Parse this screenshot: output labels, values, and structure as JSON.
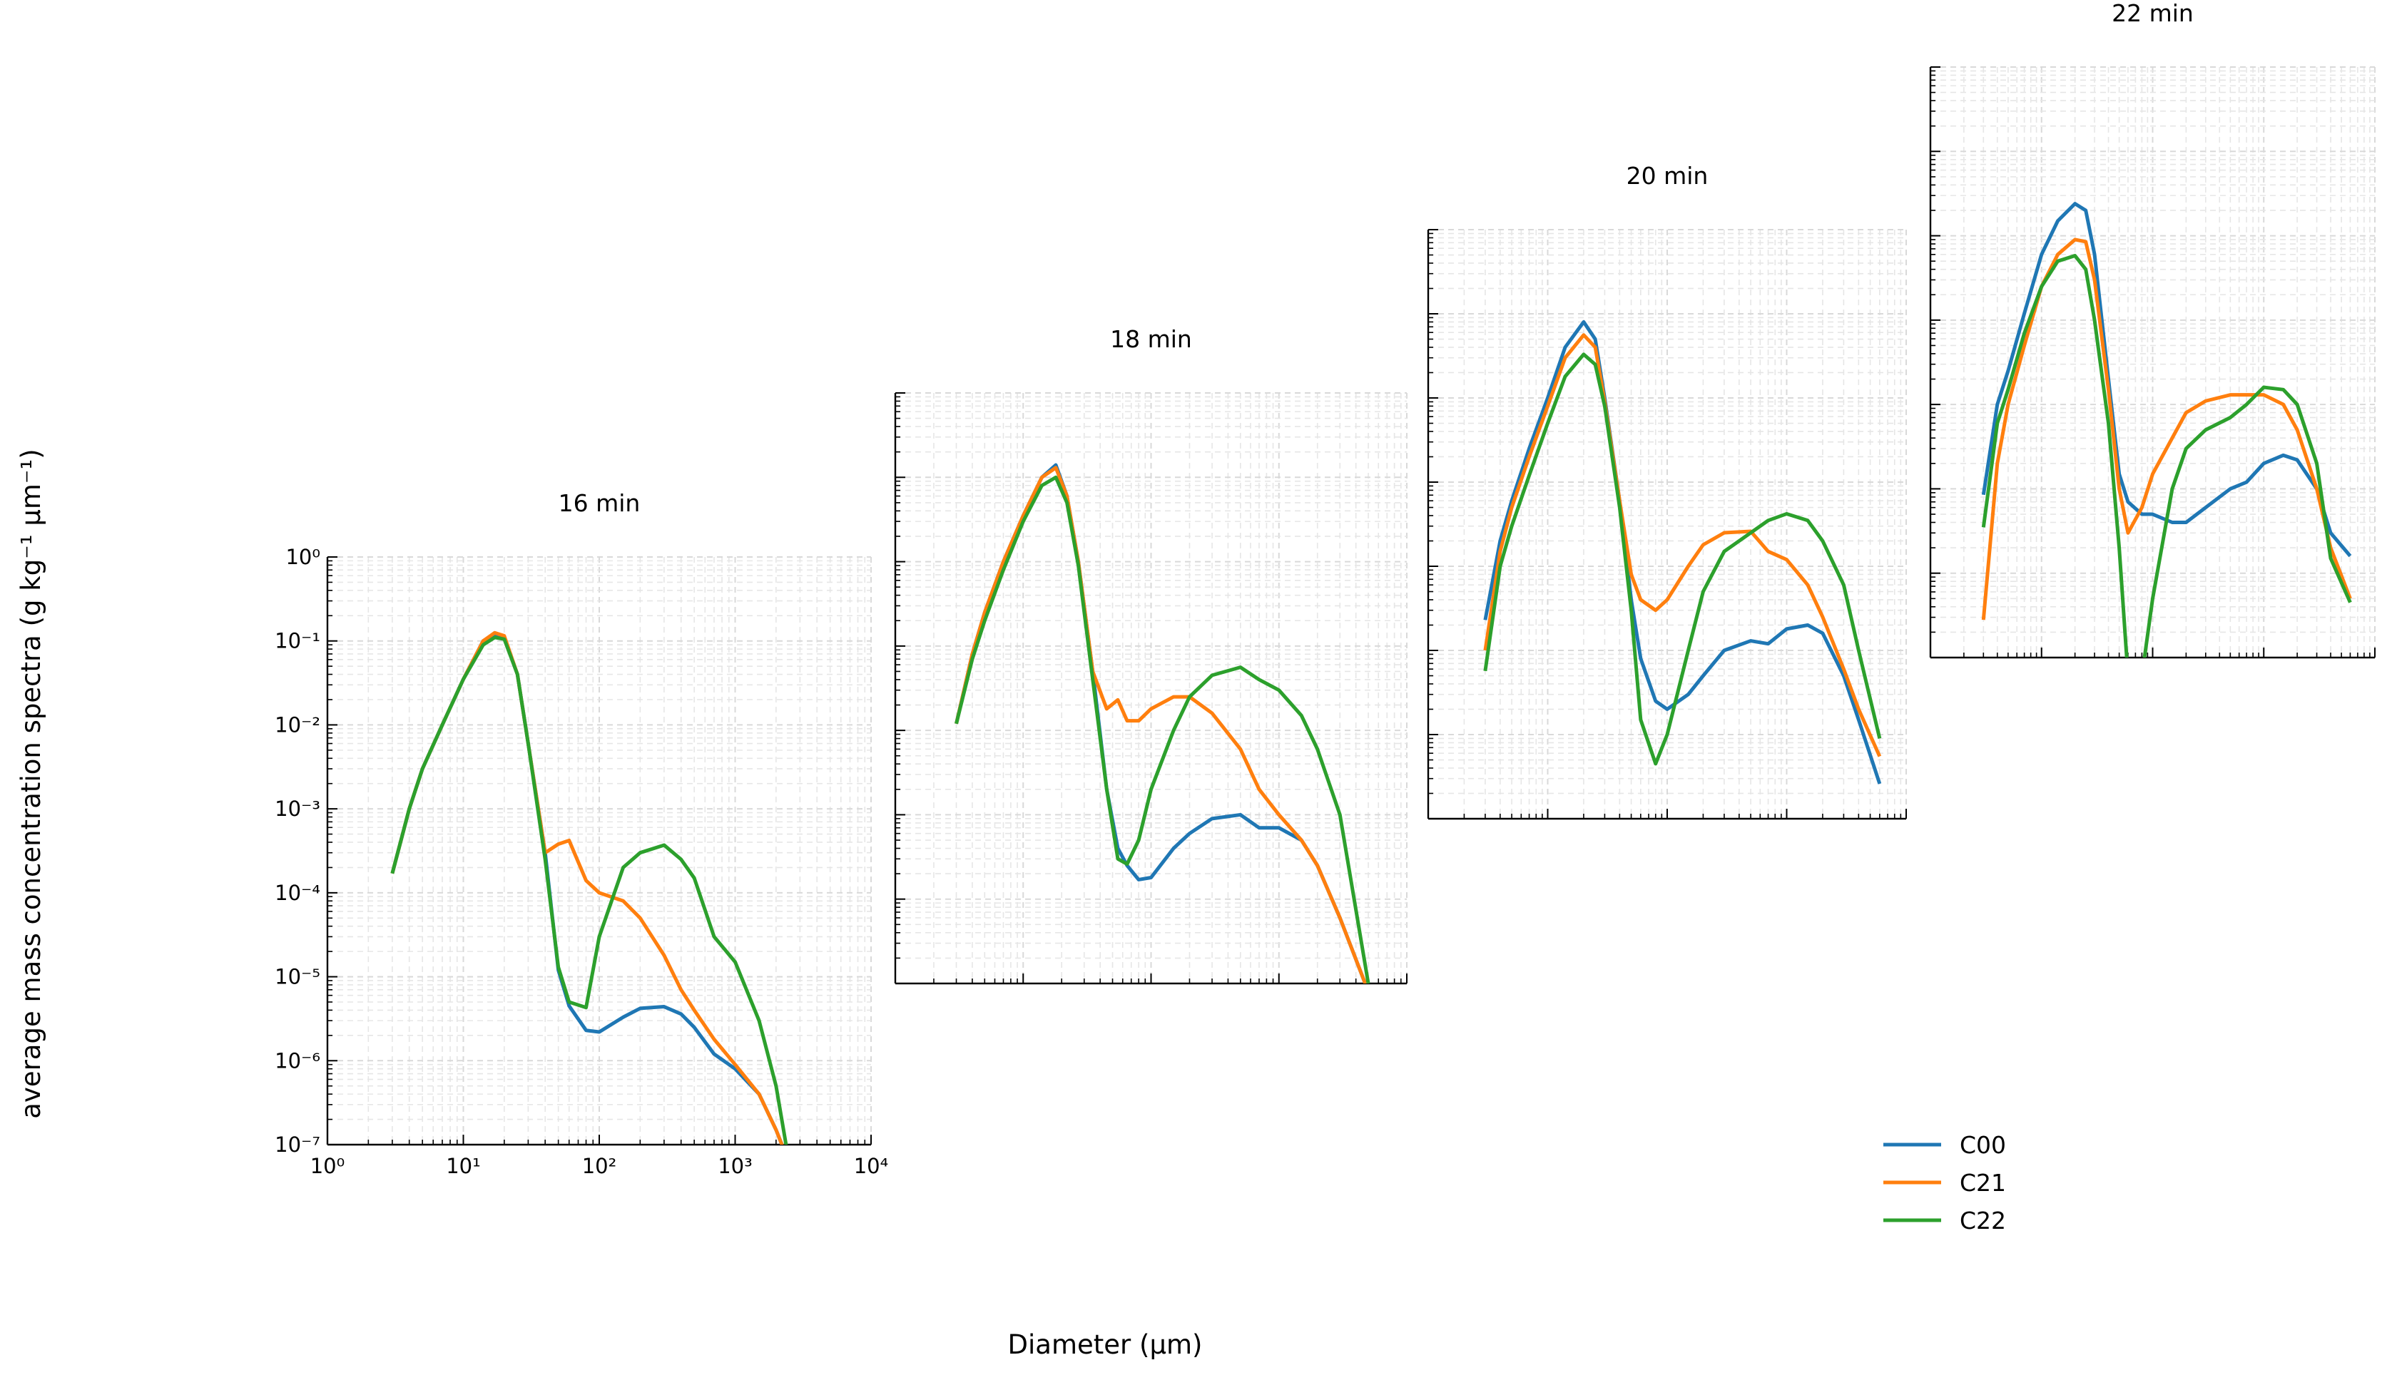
{
  "figure": {
    "xlabel": "Diameter (μm)",
    "ylabel": "average mass concentration spectra (g kg⁻¹ μm⁻¹)"
  },
  "chart_data": [
    {
      "type": "line",
      "title": "16 min",
      "log": true,
      "grid": true,
      "tick_labels": true,
      "xlim": [
        1,
        10000
      ],
      "ylim": [
        1e-07,
        1
      ],
      "xticks": [
        {
          "value": 1,
          "label": "10⁰"
        },
        {
          "value": 10,
          "label": "10¹"
        },
        {
          "value": 100,
          "label": "10²"
        },
        {
          "value": 1000,
          "label": "10³"
        },
        {
          "value": 10000,
          "label": "10⁴"
        }
      ],
      "yticks": [
        {
          "value": 1e-07,
          "label": "10⁻⁷"
        },
        {
          "value": 1e-06,
          "label": "10⁻⁶"
        },
        {
          "value": 1e-05,
          "label": "10⁻⁵"
        },
        {
          "value": 0.0001,
          "label": "10⁻⁴"
        },
        {
          "value": 0.001,
          "label": "10⁻³"
        },
        {
          "value": 0.01,
          "label": "10⁻²"
        },
        {
          "value": 0.1,
          "label": "10⁻¹"
        },
        {
          "value": 1,
          "label": "10⁰"
        }
      ],
      "x": [
        3,
        4,
        5,
        7,
        10,
        14,
        17,
        20,
        25,
        30,
        40,
        50,
        60,
        80,
        100,
        150,
        200,
        300,
        400,
        500,
        700,
        1000,
        1500,
        2000,
        2500
      ],
      "series": [
        {
          "name": "C00",
          "color": "#1f77b4",
          "values": [
            0.00017,
            0.001,
            0.003,
            0.01,
            0.035,
            0.1,
            0.12,
            0.11,
            0.04,
            0.006,
            0.0003,
            1.2e-05,
            4.5e-06,
            2.3e-06,
            2.2e-06,
            3.3e-06,
            4.2e-06,
            4.4e-06,
            3.6e-06,
            2.5e-06,
            1.2e-06,
            8e-07,
            4e-07,
            1.5e-07,
            6e-08
          ]
        },
        {
          "name": "C21",
          "color": "#ff7f0e",
          "values": [
            0.00017,
            0.001,
            0.003,
            0.01,
            0.035,
            0.1,
            0.125,
            0.115,
            0.04,
            0.006,
            0.0003,
            0.00038,
            0.00042,
            0.00014,
            0.0001,
            8e-05,
            5e-05,
            1.8e-05,
            7e-06,
            4e-06,
            1.8e-06,
            9e-07,
            4e-07,
            1.5e-07,
            6e-08
          ]
        },
        {
          "name": "C22",
          "color": "#2ca02c",
          "values": [
            0.00017,
            0.001,
            0.003,
            0.01,
            0.035,
            0.09,
            0.11,
            0.105,
            0.04,
            0.006,
            0.00025,
            1.3e-05,
            5e-06,
            4.3e-06,
            3e-05,
            0.0002,
            0.0003,
            0.00037,
            0.00025,
            0.00015,
            3e-05,
            1.5e-05,
            3e-06,
            5e-07,
            6e-08
          ]
        }
      ]
    },
    {
      "type": "line",
      "title": "18 min",
      "log": true,
      "grid": true,
      "tick_labels": false,
      "xlim": [
        1,
        10000
      ],
      "ylim": [
        1e-07,
        1
      ],
      "xticks": [
        1,
        10,
        100,
        1000,
        10000
      ],
      "yticks": [
        1e-07,
        1e-06,
        1e-05,
        0.0001,
        0.001,
        0.01,
        0.1,
        1
      ],
      "x": [
        3,
        4,
        5,
        7,
        10,
        14,
        18,
        22,
        27,
        35,
        45,
        55,
        65,
        80,
        100,
        150,
        200,
        300,
        500,
        700,
        1000,
        1500,
        2000,
        3000,
        5000
      ],
      "series": [
        {
          "name": "C00",
          "color": "#1f77b4",
          "values": [
            0.00012,
            0.0008,
            0.0025,
            0.01,
            0.035,
            0.1,
            0.14,
            0.06,
            0.01,
            0.0005,
            2e-05,
            4e-06,
            2.5e-06,
            1.7e-06,
            1.8e-06,
            4e-06,
            6e-06,
            9e-06,
            1e-05,
            7e-06,
            7e-06,
            5e-06,
            2.5e-06,
            6e-07,
            8e-08
          ]
        },
        {
          "name": "C21",
          "color": "#ff7f0e",
          "values": [
            0.00012,
            0.0008,
            0.0025,
            0.01,
            0.035,
            0.1,
            0.13,
            0.06,
            0.01,
            0.0005,
            0.00018,
            0.00023,
            0.00013,
            0.00013,
            0.00018,
            0.00025,
            0.00025,
            0.00016,
            6e-05,
            2e-05,
            1e-05,
            5e-06,
            2.5e-06,
            6e-07,
            8e-08
          ]
        },
        {
          "name": "C22",
          "color": "#2ca02c",
          "values": [
            0.00012,
            0.0007,
            0.002,
            0.008,
            0.03,
            0.08,
            0.1,
            0.05,
            0.009,
            0.0004,
            2e-05,
            3e-06,
            2.6e-06,
            5e-06,
            2e-05,
            0.0001,
            0.00025,
            0.00045,
            0.00056,
            0.0004,
            0.0003,
            0.00015,
            6e-05,
            1e-05,
            1e-07
          ]
        }
      ]
    },
    {
      "type": "line",
      "title": "20 min",
      "log": true,
      "grid": true,
      "tick_labels": false,
      "xlim": [
        1,
        10000
      ],
      "ylim": [
        1e-07,
        1
      ],
      "xticks": [
        1,
        10,
        100,
        1000,
        10000
      ],
      "yticks": [
        1e-07,
        1e-06,
        1e-05,
        0.0001,
        0.001,
        0.01,
        0.1,
        1
      ],
      "x": [
        3,
        4,
        5,
        7,
        10,
        14,
        20,
        25,
        30,
        40,
        50,
        60,
        80,
        100,
        150,
        200,
        300,
        500,
        700,
        1000,
        1500,
        2000,
        3000,
        4000,
        6000
      ],
      "series": [
        {
          "name": "C00",
          "color": "#1f77b4",
          "values": [
            2.3e-05,
            0.0002,
            0.0006,
            0.0025,
            0.01,
            0.04,
            0.08,
            0.05,
            0.01,
            0.0006,
            4e-05,
            8e-06,
            2.5e-06,
            2e-06,
            3e-06,
            5e-06,
            1e-05,
            1.3e-05,
            1.2e-05,
            1.8e-05,
            2e-05,
            1.6e-05,
            5e-06,
            1.5e-06,
            2.6e-07
          ]
        },
        {
          "name": "C21",
          "color": "#ff7f0e",
          "values": [
            1e-05,
            0.00015,
            0.0005,
            0.002,
            0.008,
            0.03,
            0.056,
            0.04,
            0.009,
            0.0006,
            8e-05,
            4e-05,
            3e-05,
            4e-05,
            0.0001,
            0.00018,
            0.00025,
            0.00026,
            0.00015,
            0.00012,
            6e-05,
            2.5e-05,
            6e-06,
            2e-06,
            5.5e-07
          ]
        },
        {
          "name": "C22",
          "color": "#2ca02c",
          "values": [
            5.7e-06,
            0.0001,
            0.0003,
            0.0012,
            0.005,
            0.018,
            0.033,
            0.025,
            0.008,
            0.0005,
            3e-05,
            1.5e-06,
            4.5e-07,
            1e-06,
            1e-05,
            5e-05,
            0.00015,
            0.00025,
            0.00035,
            0.00042,
            0.00035,
            0.0002,
            6e-05,
            1e-05,
            9e-07
          ]
        }
      ]
    },
    {
      "type": "line",
      "title": "22 min",
      "log": true,
      "grid": true,
      "tick_labels": false,
      "xlim": [
        1,
        10000
      ],
      "ylim": [
        1e-07,
        1
      ],
      "xticks": [
        1,
        10,
        100,
        1000,
        10000
      ],
      "yticks": [
        1e-07,
        1e-06,
        1e-05,
        0.0001,
        0.001,
        0.01,
        0.1,
        1
      ],
      "x": [
        3,
        4,
        5,
        7,
        10,
        14,
        20,
        25,
        30,
        40,
        50,
        60,
        80,
        100,
        150,
        200,
        300,
        500,
        700,
        1000,
        1500,
        2000,
        3000,
        4000,
        6000
      ],
      "series": [
        {
          "name": "C00",
          "color": "#1f77b4",
          "values": [
            8.5e-06,
            0.0001,
            0.00025,
            0.0012,
            0.006,
            0.015,
            0.024,
            0.02,
            0.006,
            0.0002,
            1.5e-05,
            7e-06,
            5e-06,
            5e-06,
            4e-06,
            4e-06,
            6e-06,
            1e-05,
            1.2e-05,
            2e-05,
            2.5e-05,
            2.2e-05,
            1e-05,
            3e-06,
            1.6e-06
          ]
        },
        {
          "name": "C21",
          "color": "#ff7f0e",
          "values": [
            2.8e-07,
            2e-05,
            0.0001,
            0.0005,
            0.0025,
            0.006,
            0.009,
            0.0085,
            0.003,
            0.00015,
            1e-05,
            3e-06,
            6e-06,
            1.5e-05,
            4e-05,
            8e-05,
            0.00011,
            0.00013,
            0.00013,
            0.00013,
            0.0001,
            5e-05,
            1e-05,
            2e-06,
            5e-07
          ]
        },
        {
          "name": "C22",
          "color": "#2ca02c",
          "values": [
            3.5e-06,
            6e-05,
            0.00015,
            0.0007,
            0.0025,
            0.005,
            0.0058,
            0.004,
            0.001,
            6e-05,
            2e-06,
            6e-08,
            6e-08,
            5e-07,
            1e-05,
            3e-05,
            5e-05,
            7e-05,
            0.0001,
            0.00016,
            0.00015,
            0.0001,
            2e-05,
            1.5e-06,
            4.5e-07
          ]
        }
      ]
    }
  ]
}
